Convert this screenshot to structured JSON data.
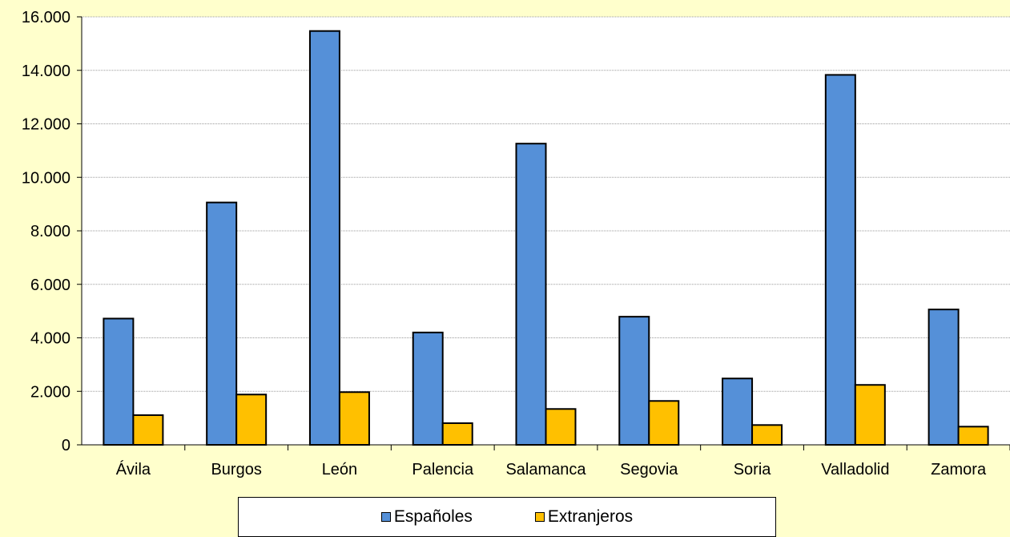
{
  "chart_data": {
    "type": "bar",
    "categories": [
      "Ávila",
      "Burgos",
      "León",
      "Palencia",
      "Salamanca",
      "Segovia",
      "Soria",
      "Valladolid",
      "Zamora"
    ],
    "series": [
      {
        "name": "Españoles",
        "color": "#5590D8",
        "values": [
          4720,
          9060,
          15470,
          4200,
          11260,
          4790,
          2480,
          13830,
          5060
        ]
      },
      {
        "name": "Extranjeros",
        "color": "#FFC000",
        "values": [
          1110,
          1880,
          1970,
          810,
          1340,
          1640,
          740,
          2240,
          680
        ]
      }
    ],
    "yticks": [
      "0",
      "2.000",
      "4.000",
      "6.000",
      "8.000",
      "10.000",
      "12.000",
      "14.000",
      "16.000"
    ],
    "ylim": [
      0,
      16000
    ],
    "grid": true,
    "legend_position": "bottom",
    "plot_background": "#FFFFFF",
    "page_background": "#FFFFCC"
  }
}
